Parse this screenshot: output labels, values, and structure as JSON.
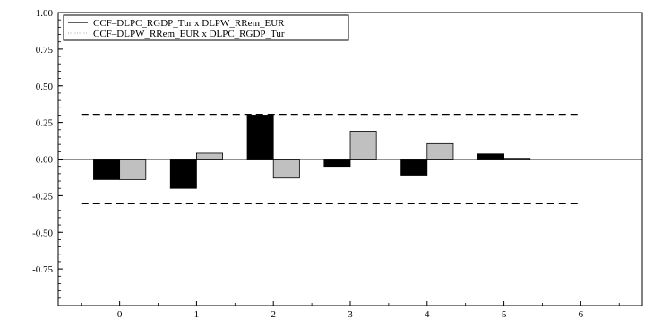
{
  "chart_data": {
    "type": "bar",
    "categories": [
      "0",
      "1",
      "2",
      "3",
      "4",
      "5",
      "6"
    ],
    "series": [
      {
        "name": "CCF–DLPC_RGDP_Tur x DLPW_RRem_EUR",
        "color": "#000000",
        "values": [
          -0.14,
          -0.2,
          0.3,
          -0.05,
          -0.11,
          0.035,
          0.0
        ]
      },
      {
        "name": "CCF–DLPW_RRem_EUR x DLPC_RGDP_Tur",
        "color": "#c0c0c0",
        "values": [
          -0.14,
          0.04,
          -0.13,
          0.19,
          0.105,
          0.005,
          0.0
        ]
      }
    ],
    "confidence_bands": [
      0.305,
      -0.305
    ],
    "ylim": [
      -1.0,
      1.0
    ],
    "xlim": [
      -0.8,
      6.8
    ],
    "y_ticks": [
      "1.00",
      "0.75",
      "0.50",
      "0.25",
      "0.00",
      "-0.25",
      "-0.50",
      "-0.75"
    ],
    "y_tick_values": [
      1.0,
      0.75,
      0.5,
      0.25,
      0.0,
      -0.25,
      -0.5,
      -0.75
    ],
    "x_ticks": [
      "0",
      "1",
      "2",
      "3",
      "4",
      "5",
      "6"
    ],
    "x_tick_values": [
      0,
      1,
      2,
      3,
      4,
      5,
      6
    ],
    "title": "",
    "xlabel": "",
    "ylabel": "",
    "legend_position": "top-left",
    "grid": false
  }
}
